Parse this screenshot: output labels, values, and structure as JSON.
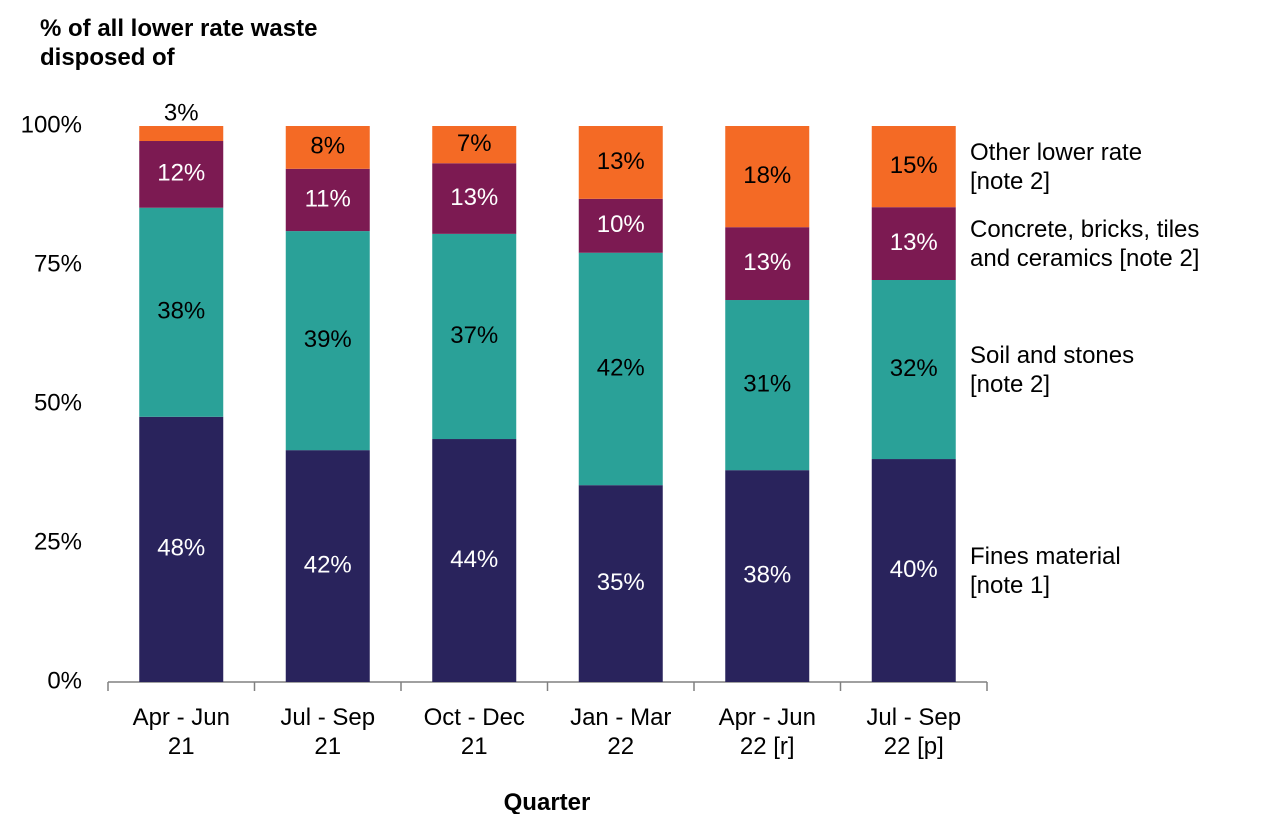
{
  "chart_data": {
    "type": "stacked_bar",
    "y_axis_title": "% of all lower rate waste\ndisposed of",
    "x_axis_title": "Quarter",
    "categories": [
      "Apr - Jun\n21",
      "Jul - Sep\n21",
      "Oct - Dec\n21",
      "Jan - Mar\n22",
      "Apr - Jun\n22 [r]",
      "Jul - Sep\n22 [p]"
    ],
    "series": [
      {
        "name": "Fines material\n[note 1]",
        "color": "#29235c",
        "values": [
          47.7,
          41.7,
          43.7,
          35.4,
          38.1,
          40.1
        ],
        "value_labels": [
          "48%",
          "42%",
          "44%",
          "35%",
          "38%",
          "40%"
        ]
      },
      {
        "name": "Soil and stones\n[note 2]",
        "color": "#2aa198",
        "values": [
          37.6,
          39.4,
          36.9,
          41.8,
          30.6,
          32.2
        ],
        "value_labels": [
          "38%",
          "39%",
          "37%",
          "42%",
          "31%",
          "32%"
        ]
      },
      {
        "name": "Concrete, bricks, tiles\nand ceramics [note 2]",
        "color": "#7c1a52",
        "values": [
          12.0,
          11.2,
          12.7,
          9.7,
          13.1,
          13.1
        ],
        "value_labels": [
          "12%",
          "11%",
          "13%",
          "10%",
          "13%",
          "13%"
        ]
      },
      {
        "name": "Other lower rate\n[note 2]",
        "color": "#f46a25",
        "values": [
          2.7,
          7.7,
          6.7,
          13.1,
          18.2,
          14.6
        ],
        "value_labels": [
          "3%",
          "8%",
          "7%",
          "13%",
          "18%",
          "15%"
        ]
      }
    ],
    "ylim": [
      0,
      100
    ],
    "yticks": [
      {
        "value": 0,
        "label": "0%"
      },
      {
        "value": 25,
        "label": "25%"
      },
      {
        "value": 50,
        "label": "50%"
      },
      {
        "value": 75,
        "label": "75%"
      },
      {
        "value": 100,
        "label": "100%"
      }
    ],
    "legend": "right"
  }
}
